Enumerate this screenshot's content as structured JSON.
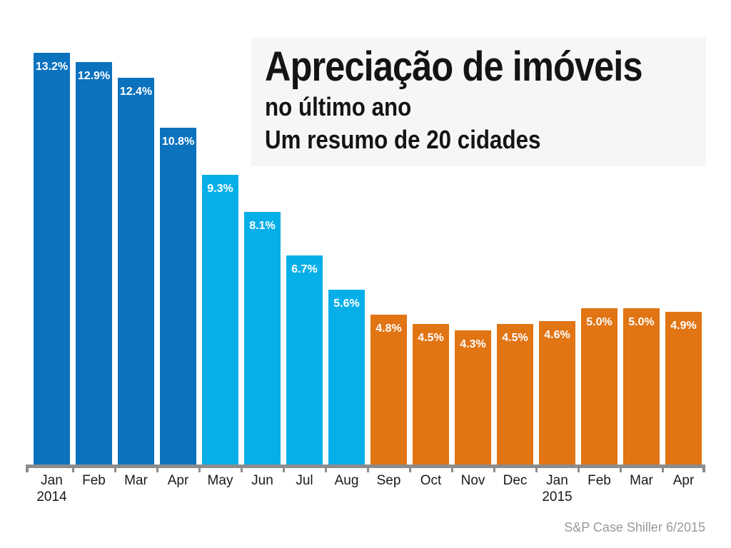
{
  "title": {
    "line1": "Apreciação de imóveis",
    "line2": "no último ano",
    "line3": "Um resumo de 20 cidades"
  },
  "source": "S&P Case Shiller 6/2015",
  "colors": {
    "dark_blue": "#0B72BE",
    "light_blue": "#07AFE9",
    "orange": "#E17413",
    "axis": "#8C8C8C",
    "title_bg": "#F6F6F6",
    "value_label_text": "#FFFFFF",
    "month_text": "#1A1A1A",
    "title_text": "#141414",
    "source_text": "#9A9A9A"
  },
  "chart_data": {
    "type": "bar",
    "title": "Apreciação de imóveis",
    "subtitle1": "no último ano",
    "subtitle2": "Um resumo de 20 cidades",
    "xlabel": "",
    "ylabel": "",
    "unit": "%",
    "ylim": [
      0,
      14
    ],
    "grid": false,
    "legend": null,
    "value_labels": "inside-top, white bold",
    "categories": [
      "Jan 2014",
      "Feb",
      "Mar",
      "Apr",
      "May",
      "Jun",
      "Jul",
      "Aug",
      "Sep",
      "Oct",
      "Nov",
      "Dec",
      "Jan 2015",
      "Feb",
      "Mar",
      "Apr"
    ],
    "values": [
      13.2,
      12.9,
      12.4,
      10.8,
      9.3,
      8.1,
      6.7,
      5.6,
      4.8,
      4.5,
      4.3,
      4.5,
      4.6,
      5.0,
      5.0,
      4.9
    ],
    "points": [
      {
        "month": "Jan",
        "year": "2014",
        "value": 13.2,
        "display": "13.2%",
        "group": "dark_blue"
      },
      {
        "month": "Feb",
        "year": "",
        "value": 12.9,
        "display": "12.9%",
        "group": "dark_blue"
      },
      {
        "month": "Mar",
        "year": "",
        "value": 12.4,
        "display": "12.4%",
        "group": "dark_blue"
      },
      {
        "month": "Apr",
        "year": "",
        "value": 10.8,
        "display": "10.8%",
        "group": "dark_blue"
      },
      {
        "month": "May",
        "year": "",
        "value": 9.3,
        "display": "9.3%",
        "group": "light_blue"
      },
      {
        "month": "Jun",
        "year": "",
        "value": 8.1,
        "display": "8.1%",
        "group": "light_blue"
      },
      {
        "month": "Jul",
        "year": "",
        "value": 6.7,
        "display": "6.7%",
        "group": "light_blue"
      },
      {
        "month": "Aug",
        "year": "",
        "value": 5.6,
        "display": "5.6%",
        "group": "light_blue"
      },
      {
        "month": "Sep",
        "year": "",
        "value": 4.8,
        "display": "4.8%",
        "group": "orange"
      },
      {
        "month": "Oct",
        "year": "",
        "value": 4.5,
        "display": "4.5%",
        "group": "orange"
      },
      {
        "month": "Nov",
        "year": "",
        "value": 4.3,
        "display": "4.3%",
        "group": "orange"
      },
      {
        "month": "Dec",
        "year": "",
        "value": 4.5,
        "display": "4.5%",
        "group": "orange"
      },
      {
        "month": "Jan",
        "year": "2015",
        "value": 4.6,
        "display": "4.6%",
        "group": "orange"
      },
      {
        "month": "Feb",
        "year": "",
        "value": 5.0,
        "display": "5.0%",
        "group": "orange"
      },
      {
        "month": "Mar",
        "year": "",
        "value": 5.0,
        "display": "5.0%",
        "group": "orange"
      },
      {
        "month": "Apr",
        "year": "",
        "value": 4.9,
        "display": "4.9%",
        "group": "orange"
      }
    ]
  }
}
